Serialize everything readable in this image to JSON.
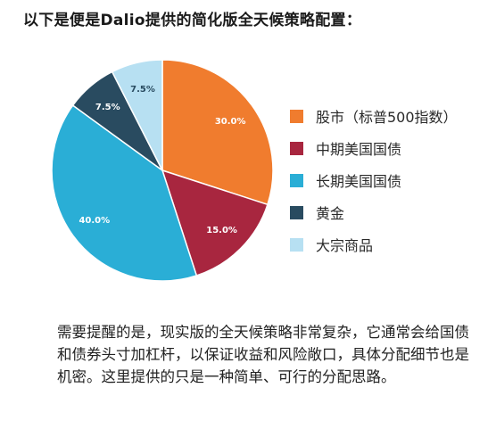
{
  "heading": "以下是便是Dalio提供的简化版全天候策略配置：",
  "chart_data": {
    "type": "pie",
    "slices": [
      {
        "label": "股市（标普500指数）",
        "value": 30.0,
        "display": "30.0%",
        "color": "#f07c2e",
        "label_color": "#ffffff"
      },
      {
        "label": "中期美国国债",
        "value": 15.0,
        "display": "15.0%",
        "color": "#a8263f",
        "label_color": "#ffffff"
      },
      {
        "label": "长期美国国债",
        "value": 40.0,
        "display": "40.0%",
        "color": "#2aaed6",
        "label_color": "#ffffff"
      },
      {
        "label": "黄金",
        "value": 7.5,
        "display": "7.5%",
        "color": "#294b60",
        "label_color": "#ffffff"
      },
      {
        "label": "大宗商品",
        "value": 7.5,
        "display": "7.5%",
        "color": "#b7e0f2",
        "label_color": "#294b60"
      }
    ],
    "start_angle": "12 o'clock",
    "direction": "clockwise",
    "legend_position": "right"
  },
  "note": "需要提醒的是，现实版的全天候策略非常复杂，它通常会给国债和债券头寸加杠杆，以保证收益和风险敞口，具体分配细节也是机密。这里提供的只是一种简单、可行的分配思路。"
}
